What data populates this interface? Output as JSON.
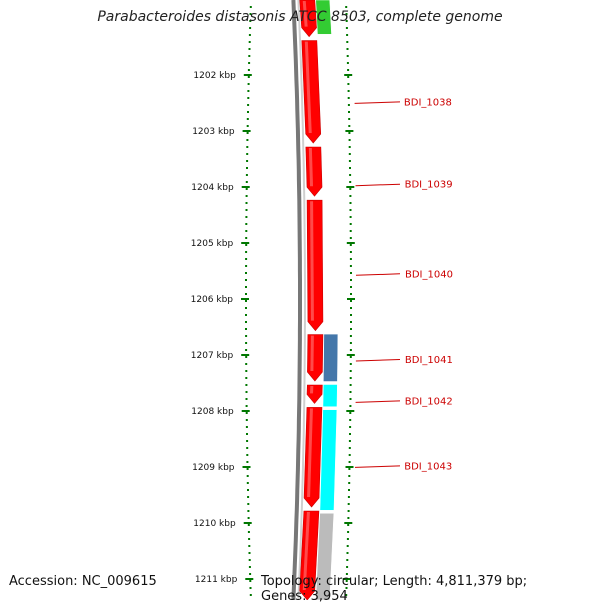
{
  "title": "Parabacteroides distasonis ATCC 8503, complete genome",
  "footer": {
    "accession_label": "Accession: NC_009615",
    "topology": "Topology: circular;",
    "length": "Length: 4,811,379 bp;",
    "genes": "Genes: 3,954"
  },
  "colors": {
    "cds_forward": "#ff0000",
    "rna_green": "#33cc33",
    "cds_steelblue": "#4477aa",
    "cds_cyan": "#00ffff",
    "cds_gray": "#bbbbbb",
    "tick_green": "#007700",
    "label_red": "#cc0000"
  },
  "chart_data": {
    "type": "genome-map",
    "axis": {
      "unit": "kbp",
      "ticks": [
        "1202 kbp",
        "1203 kbp",
        "1204 kbp",
        "1205 kbp",
        "1206 kbp",
        "1207 kbp",
        "1208 kbp",
        "1209 kbp",
        "1210 kbp",
        "1211 kbp"
      ]
    },
    "inner_track": [
      {
        "start": 1200.5,
        "end": 1201.35
      },
      {
        "start": 1201.35,
        "end": 1203.25
      },
      {
        "start": 1203.25,
        "end": 1204.2
      },
      {
        "start": 1204.2,
        "end": 1206.6
      },
      {
        "start": 1206.6,
        "end": 1207.5
      },
      {
        "start": 1207.5,
        "end": 1207.9
      },
      {
        "start": 1207.9,
        "end": 1209.75
      },
      {
        "start": 1209.75,
        "end": 1211.5
      }
    ],
    "outer_track": [
      {
        "start": 1200.5,
        "end": 1201.3,
        "color_key": "rna_green"
      },
      {
        "start": 1206.6,
        "end": 1207.5,
        "color_key": "cds_steelblue"
      },
      {
        "start": 1207.5,
        "end": 1207.95,
        "color_key": "cds_cyan"
      },
      {
        "start": 1207.95,
        "end": 1209.8,
        "color_key": "cds_cyan"
      },
      {
        "start": 1209.8,
        "end": 1211.5,
        "color_key": "cds_gray"
      }
    ],
    "genes": [
      {
        "name": "BDI_1038",
        "pos": 1202.48
      },
      {
        "name": "BDI_1039",
        "pos": 1203.95
      },
      {
        "name": "BDI_1040",
        "pos": 1205.55
      },
      {
        "name": "BDI_1041",
        "pos": 1207.08
      },
      {
        "name": "BDI_1042",
        "pos": 1207.82
      },
      {
        "name": "BDI_1043",
        "pos": 1208.98
      }
    ]
  }
}
